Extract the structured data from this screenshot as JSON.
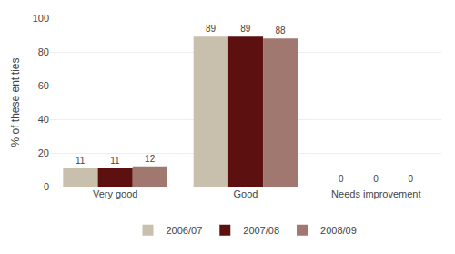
{
  "chart_data": {
    "type": "bar",
    "categories": [
      "Very good",
      "Good",
      "Needs improvement"
    ],
    "series": [
      {
        "name": "2006/07",
        "color": "#c8bfad",
        "values": [
          11,
          89,
          0
        ]
      },
      {
        "name": "2007/08",
        "color": "#5c1010",
        "values": [
          11,
          89,
          0
        ]
      },
      {
        "name": "2008/09",
        "color": "#a07870",
        "values": [
          12,
          88,
          0
        ]
      }
    ],
    "ylabel": "% of these entities",
    "ylim": [
      0,
      100
    ],
    "yticks": [
      0,
      20,
      40,
      60,
      80,
      100
    ],
    "grid": true,
    "legend": "bottom",
    "data_labels": true
  }
}
